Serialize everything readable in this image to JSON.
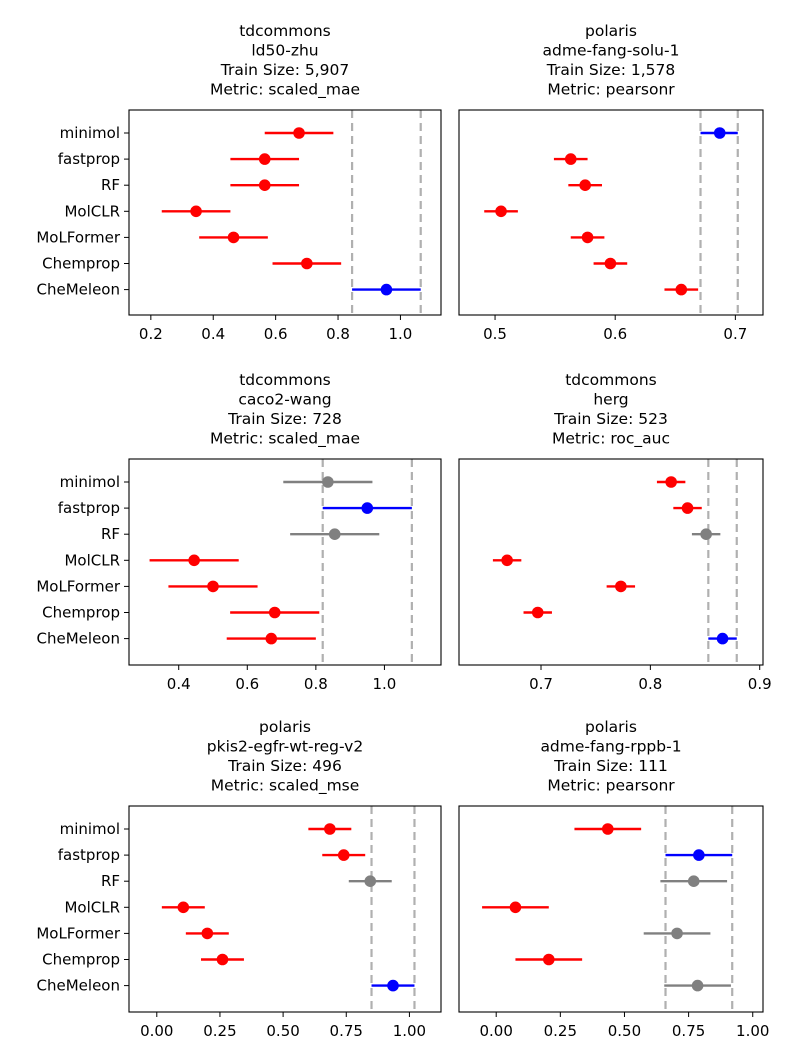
{
  "figure": {
    "background": "#ffffff"
  },
  "colors": {
    "red": "#ff0000",
    "blue": "#0000ff",
    "gray": "#808080",
    "refline": "#b0b0b0"
  },
  "chart_data": [
    {
      "type": "scatter",
      "source": "tdcommons",
      "dataset": "ld50-zhu",
      "title": [
        "tdcommons",
        "ld50-zhu",
        "Train Size: 5,907",
        "Metric: scaled_mae"
      ],
      "categories": [
        "minimol",
        "fastprop",
        "RF",
        "MolCLR",
        "MoLFormer",
        "Chemprop",
        "CheMeleon"
      ],
      "points": [
        {
          "value": 0.675,
          "low": 0.565,
          "high": 0.785,
          "color": "red"
        },
        {
          "value": 0.565,
          "low": 0.455,
          "high": 0.675,
          "color": "red"
        },
        {
          "value": 0.565,
          "low": 0.455,
          "high": 0.675,
          "color": "red"
        },
        {
          "value": 0.345,
          "low": 0.235,
          "high": 0.455,
          "color": "red"
        },
        {
          "value": 0.465,
          "low": 0.355,
          "high": 0.575,
          "color": "red"
        },
        {
          "value": 0.7,
          "low": 0.59,
          "high": 0.81,
          "color": "red"
        },
        {
          "value": 0.955,
          "low": 0.845,
          "high": 1.065,
          "color": "blue"
        }
      ],
      "reference_lines": [
        0.845,
        1.065
      ],
      "xlim": [
        0.13,
        1.13
      ],
      "xticks": [
        0.2,
        0.4,
        0.6,
        0.8,
        1.0
      ],
      "xtick_labels": [
        "0.2",
        "0.4",
        "0.6",
        "0.8",
        "1.0"
      ]
    },
    {
      "type": "scatter",
      "source": "polaris",
      "dataset": "adme-fang-solu-1",
      "title": [
        "polaris",
        "adme-fang-solu-1",
        "Train Size: 1,578",
        "Metric: pearsonr"
      ],
      "categories": [
        "minimol",
        "fastprop",
        "RF",
        "MolCLR",
        "MoLFormer",
        "Chemprop",
        "CheMeleon"
      ],
      "points": [
        {
          "value": 0.687,
          "low": 0.671,
          "high": 0.702,
          "color": "blue"
        },
        {
          "value": 0.563,
          "low": 0.549,
          "high": 0.577,
          "color": "red"
        },
        {
          "value": 0.575,
          "low": 0.561,
          "high": 0.589,
          "color": "red"
        },
        {
          "value": 0.505,
          "low": 0.491,
          "high": 0.519,
          "color": "red"
        },
        {
          "value": 0.577,
          "low": 0.563,
          "high": 0.591,
          "color": "red"
        },
        {
          "value": 0.596,
          "low": 0.582,
          "high": 0.61,
          "color": "red"
        },
        {
          "value": 0.655,
          "low": 0.641,
          "high": 0.669,
          "color": "red"
        }
      ],
      "reference_lines": [
        0.671,
        0.702
      ],
      "xlim": [
        0.47,
        0.723
      ],
      "xticks": [
        0.5,
        0.6,
        0.7
      ],
      "xtick_labels": [
        "0.5",
        "0.6",
        "0.7"
      ]
    },
    {
      "type": "scatter",
      "source": "tdcommons",
      "dataset": "caco2-wang",
      "title": [
        "tdcommons",
        "caco2-wang",
        "Train Size: 728",
        "Metric: scaled_mae"
      ],
      "categories": [
        "minimol",
        "fastprop",
        "RF",
        "MolCLR",
        "MoLFormer",
        "Chemprop",
        "CheMeleon"
      ],
      "points": [
        {
          "value": 0.835,
          "low": 0.705,
          "high": 0.965,
          "color": "gray"
        },
        {
          "value": 0.95,
          "low": 0.82,
          "high": 1.08,
          "color": "blue"
        },
        {
          "value": 0.855,
          "low": 0.725,
          "high": 0.985,
          "color": "gray"
        },
        {
          "value": 0.445,
          "low": 0.315,
          "high": 0.575,
          "color": "red"
        },
        {
          "value": 0.5,
          "low": 0.37,
          "high": 0.63,
          "color": "red"
        },
        {
          "value": 0.68,
          "low": 0.55,
          "high": 0.81,
          "color": "red"
        },
        {
          "value": 0.67,
          "low": 0.54,
          "high": 0.8,
          "color": "red"
        }
      ],
      "reference_lines": [
        0.82,
        1.08
      ],
      "xlim": [
        0.255,
        1.165
      ],
      "xticks": [
        0.4,
        0.6,
        0.8,
        1.0
      ],
      "xtick_labels": [
        "0.4",
        "0.6",
        "0.8",
        "1.0"
      ]
    },
    {
      "type": "scatter",
      "source": "tdcommons",
      "dataset": "herg",
      "title": [
        "tdcommons",
        "herg",
        "Train Size: 523",
        "Metric: roc_auc"
      ],
      "categories": [
        "minimol",
        "fastprop",
        "RF",
        "MolCLR",
        "MoLFormer",
        "Chemprop",
        "CheMeleon"
      ],
      "points": [
        {
          "value": 0.819,
          "low": 0.806,
          "high": 0.832,
          "color": "red"
        },
        {
          "value": 0.834,
          "low": 0.821,
          "high": 0.847,
          "color": "red"
        },
        {
          "value": 0.851,
          "low": 0.838,
          "high": 0.864,
          "color": "gray"
        },
        {
          "value": 0.669,
          "low": 0.656,
          "high": 0.682,
          "color": "red"
        },
        {
          "value": 0.773,
          "low": 0.76,
          "high": 0.786,
          "color": "red"
        },
        {
          "value": 0.697,
          "low": 0.684,
          "high": 0.71,
          "color": "red"
        },
        {
          "value": 0.866,
          "low": 0.853,
          "high": 0.879,
          "color": "blue"
        }
      ],
      "reference_lines": [
        0.853,
        0.879
      ],
      "xlim": [
        0.625,
        0.903
      ],
      "xticks": [
        0.7,
        0.8,
        0.9
      ],
      "xtick_labels": [
        "0.7",
        "0.8",
        "0.9"
      ]
    },
    {
      "type": "scatter",
      "source": "polaris",
      "dataset": "pkis2-egfr-wt-reg-v2",
      "title": [
        "polaris",
        "pkis2-egfr-wt-reg-v2",
        "Train Size: 496",
        "Metric: scaled_mse"
      ],
      "categories": [
        "minimol",
        "fastprop",
        "RF",
        "MolCLR",
        "MoLFormer",
        "Chemprop",
        "CheMeleon"
      ],
      "points": [
        {
          "value": 0.685,
          "low": 0.6,
          "high": 0.77,
          "color": "red"
        },
        {
          "value": 0.74,
          "low": 0.655,
          "high": 0.825,
          "color": "red"
        },
        {
          "value": 0.845,
          "low": 0.76,
          "high": 0.93,
          "color": "gray"
        },
        {
          "value": 0.105,
          "low": 0.02,
          "high": 0.19,
          "color": "red"
        },
        {
          "value": 0.2,
          "low": 0.115,
          "high": 0.285,
          "color": "red"
        },
        {
          "value": 0.26,
          "low": 0.175,
          "high": 0.345,
          "color": "red"
        },
        {
          "value": 0.935,
          "low": 0.85,
          "high": 1.02,
          "color": "blue"
        }
      ],
      "reference_lines": [
        0.85,
        1.02
      ],
      "xlim": [
        -0.11,
        1.125
      ],
      "xticks": [
        0.0,
        0.25,
        0.5,
        0.75,
        1.0
      ],
      "xtick_labels": [
        "0.00",
        "0.25",
        "0.50",
        "0.75",
        "1.00"
      ]
    },
    {
      "type": "scatter",
      "source": "polaris",
      "dataset": "adme-fang-rppb-1",
      "title": [
        "polaris",
        "adme-fang-rppb-1",
        "Train Size: 111",
        "Metric: pearsonr"
      ],
      "categories": [
        "minimol",
        "fastprop",
        "RF",
        "MolCLR",
        "MoLFormer",
        "Chemprop",
        "CheMeleon"
      ],
      "points": [
        {
          "value": 0.435,
          "low": 0.305,
          "high": 0.565,
          "color": "red"
        },
        {
          "value": 0.79,
          "low": 0.66,
          "high": 0.92,
          "color": "blue"
        },
        {
          "value": 0.77,
          "low": 0.64,
          "high": 0.9,
          "color": "gray"
        },
        {
          "value": 0.075,
          "low": -0.055,
          "high": 0.205,
          "color": "red"
        },
        {
          "value": 0.705,
          "low": 0.575,
          "high": 0.835,
          "color": "gray"
        },
        {
          "value": 0.205,
          "low": 0.075,
          "high": 0.335,
          "color": "red"
        },
        {
          "value": 0.785,
          "low": 0.655,
          "high": 0.915,
          "color": "gray"
        }
      ],
      "reference_lines": [
        0.66,
        0.92
      ],
      "xlim": [
        -0.145,
        1.04
      ],
      "xticks": [
        0.0,
        0.25,
        0.5,
        0.75,
        1.0
      ],
      "xtick_labels": [
        "0.00",
        "0.25",
        "0.50",
        "0.75",
        "1.00"
      ]
    }
  ]
}
